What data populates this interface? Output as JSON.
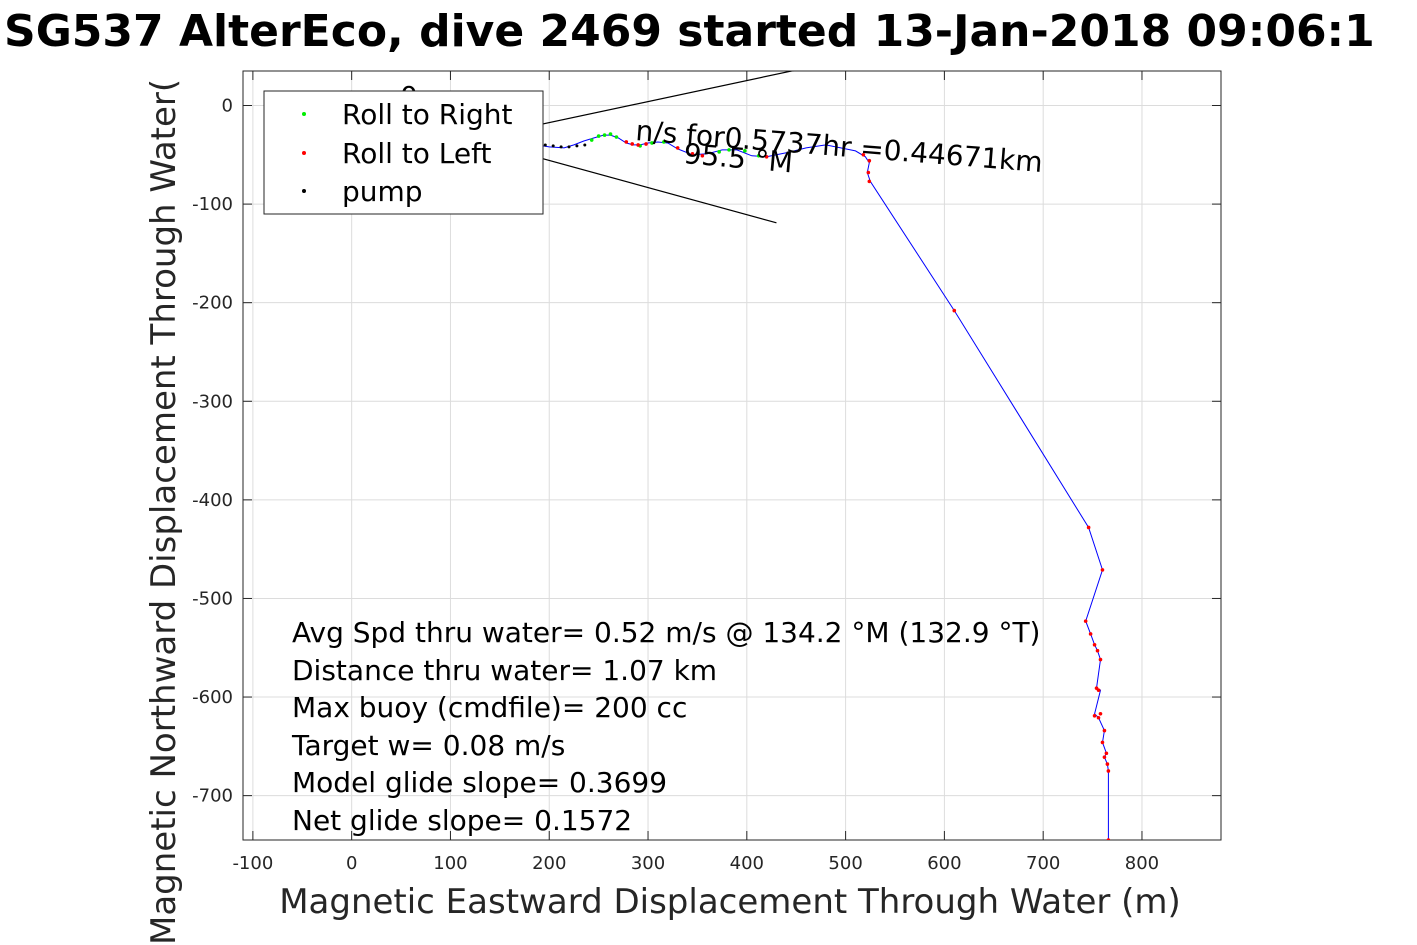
{
  "chart_data": {
    "type": "line",
    "title": "SG537 AlterEco, dive 2469 started 13-Jan-2018 09:06:1",
    "xlabel": "Magnetic Eastward Displacement Through Water (m)",
    "ylabel": "Magnetic Northward Displacement Through Water(",
    "xlim": [
      -110,
      880
    ],
    "ylim": [
      -745,
      35
    ],
    "xticks": [
      -100,
      0,
      100,
      200,
      300,
      400,
      500,
      600,
      700,
      800
    ],
    "yticks": [
      0,
      -100,
      -200,
      -300,
      -400,
      -500,
      -600,
      -700
    ],
    "grid": true,
    "legend_position": "top-left",
    "legend": [
      {
        "name": "Roll to Right",
        "color": "#00ee00"
      },
      {
        "name": "Roll to Left",
        "color": "#ff0000"
      },
      {
        "name": "pump",
        "color": "#000000"
      }
    ],
    "track": {
      "color": "#0000ff",
      "x": [
        150,
        175,
        200,
        215,
        225,
        235,
        245,
        255,
        262,
        270,
        278,
        285,
        292,
        300,
        310,
        320,
        330,
        345,
        360,
        375,
        390,
        405,
        420,
        440,
        460,
        480,
        495,
        510,
        520,
        524,
        522,
        525,
        610,
        746,
        760,
        743,
        748,
        752,
        755,
        758,
        754,
        758,
        752,
        756,
        762,
        760,
        764,
        762,
        765,
        766,
        766
      ],
      "y": [
        -35,
        -38,
        -42,
        -43,
        -40,
        -36,
        -33,
        -30,
        -30,
        -33,
        -38,
        -40,
        -40,
        -38,
        -37,
        -38,
        -44,
        -50,
        -49,
        -45,
        -45,
        -51,
        -52,
        -48,
        -43,
        -40,
        -43,
        -46,
        -52,
        -58,
        -68,
        -77,
        -208,
        -428,
        -471,
        -523,
        -536,
        -547,
        -553,
        -562,
        -591,
        -593,
        -617,
        -621,
        -634,
        -646,
        -657,
        -661,
        -668,
        -675,
        -745
      ]
    },
    "pump_points": {
      "x": [
        165,
        172,
        180,
        188,
        196,
        204,
        212,
        220,
        228,
        236
      ],
      "y": [
        -36,
        -37,
        -38,
        -39,
        -40,
        -41,
        -42,
        -42,
        -41,
        -40
      ]
    },
    "roll_right_points": {
      "x": [
        243,
        250,
        256,
        262,
        268,
        292,
        304,
        316,
        372,
        382,
        398,
        412
      ],
      "y": [
        -35,
        -31,
        -30,
        -29,
        -32,
        -41,
        -38,
        -37,
        -47,
        -45,
        -46,
        -51
      ]
    },
    "roll_left_points": {
      "x": [
        278,
        284,
        290,
        298,
        330,
        345,
        355,
        420,
        518,
        524,
        523,
        524,
        610,
        746,
        760,
        743,
        748,
        752,
        755,
        758,
        754,
        756,
        758,
        752,
        756,
        762,
        760,
        764,
        762,
        765,
        766,
        766
      ],
      "y": [
        -37,
        -39,
        -40,
        -39,
        -43,
        -49,
        -51,
        -52,
        -50,
        -56,
        -68,
        -77,
        -208,
        -428,
        -471,
        -523,
        -536,
        -547,
        -553,
        -562,
        -591,
        -593,
        -617,
        -619,
        -621,
        -634,
        -646,
        -657,
        -661,
        -668,
        -675,
        -745
      ]
    },
    "heading_lines": [
      {
        "x": [
          150,
          450
        ],
        "y": [
          -28,
          36
        ]
      },
      {
        "x": [
          150,
          430
        ],
        "y": [
          -42,
          -119
        ]
      }
    ],
    "annotations": {
      "current_text": "n/s for0.5737hr =0.44671km",
      "heading_text": "95.5 °M",
      "small_text": "0"
    },
    "stats": [
      "Avg Spd thru water=  0.52 m/s @ 134.2 °M (132.9 °T)",
      "Distance thru water=  1.07 km",
      "Max buoy (cmdfile)= 200 cc",
      "Target w= 0.08 m/s",
      "Model glide slope= 0.3699",
      "Net glide slope= 0.1572"
    ]
  }
}
